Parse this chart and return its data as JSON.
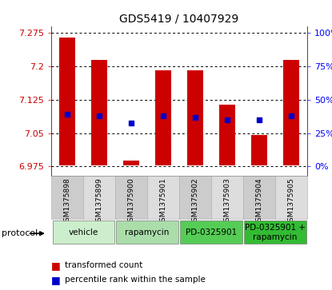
{
  "title": "GDS5419 / 10407929",
  "samples": [
    "GSM1375898",
    "GSM1375899",
    "GSM1375900",
    "GSM1375901",
    "GSM1375902",
    "GSM1375903",
    "GSM1375904",
    "GSM1375905"
  ],
  "bar_tops": [
    7.265,
    7.215,
    6.988,
    7.19,
    7.19,
    7.113,
    7.046,
    7.215
  ],
  "bar_bottoms": [
    6.978,
    6.978,
    6.978,
    6.978,
    6.978,
    6.978,
    6.978,
    6.978
  ],
  "percentile_values": [
    7.093,
    7.088,
    7.072,
    7.088,
    7.085,
    7.08,
    7.08,
    7.088
  ],
  "ylim_left": [
    6.955,
    7.29
  ],
  "yticks_left": [
    6.975,
    7.05,
    7.125,
    7.2,
    7.275
  ],
  "yticks_right": [
    0,
    25,
    50,
    75,
    100
  ],
  "bar_color": "#cc0000",
  "percentile_color": "#0000cc",
  "protocol_groups": [
    {
      "label": "vehicle",
      "start": 0,
      "end": 2,
      "color": "#cceecc"
    },
    {
      "label": "rapamycin",
      "start": 2,
      "end": 4,
      "color": "#aaddaa"
    },
    {
      "label": "PD-0325901",
      "start": 4,
      "end": 6,
      "color": "#55cc55"
    },
    {
      "label": "PD-0325901 +\nrapamycin",
      "start": 6,
      "end": 8,
      "color": "#33bb33"
    }
  ],
  "background_color": "#ffffff",
  "title_fontsize": 10,
  "tick_fontsize": 8,
  "sample_fontsize": 6.5,
  "protocol_fontsize": 7.5
}
